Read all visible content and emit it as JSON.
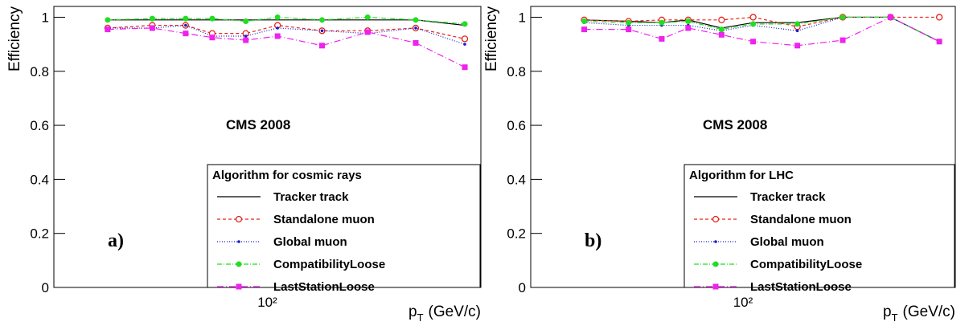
{
  "chart_data": [
    {
      "type": "line",
      "panel_label": "a)",
      "annotation": "CMS 2008",
      "legend_title": "Algorithm for cosmic rays",
      "ylabel": "Efficiency",
      "xlabel": {
        "symbol": "p",
        "subscript": "T",
        "unit": "(GeV/c)"
      },
      "x": [
        30,
        42,
        54,
        66,
        85,
        108,
        151,
        213,
        306,
        443
      ],
      "xlim": [
        20,
        500
      ],
      "xscale": "log",
      "xticks": [
        {
          "value": 100,
          "label": "10²"
        }
      ],
      "ylim": [
        0,
        1.04
      ],
      "yticks": [
        0,
        0.2,
        0.4,
        0.6,
        0.8,
        1
      ],
      "series": [
        {
          "name": "Tracker track",
          "color": "#000000",
          "dash": "none",
          "marker": "none",
          "values": [
            0.99,
            0.99,
            0.99,
            0.99,
            0.99,
            0.99,
            0.99,
            0.99,
            0.99,
            0.97
          ]
        },
        {
          "name": "Standalone muon",
          "color": "#e8231c",
          "dash": "4,3",
          "marker": "open-circle",
          "values": [
            0.96,
            0.97,
            0.97,
            0.94,
            0.94,
            0.97,
            0.95,
            0.95,
            0.96,
            0.92
          ]
        },
        {
          "name": "Global muon",
          "color": "#1a1acc",
          "dash": "1,2",
          "marker": "dot",
          "values": [
            0.96,
            0.96,
            0.97,
            0.93,
            0.93,
            0.96,
            0.95,
            0.94,
            0.96,
            0.9
          ]
        },
        {
          "name": "CompatibilityLoose",
          "color": "#22dd22",
          "dash": "6,2,1,2",
          "marker": "circle",
          "values": [
            0.99,
            0.995,
            0.995,
            0.995,
            0.985,
            1.0,
            0.99,
            1.0,
            0.99,
            0.975
          ]
        },
        {
          "name": "LastStationLoose",
          "color": "#ee22ee",
          "dash": "8,3,1,3",
          "marker": "square",
          "values": [
            0.955,
            0.96,
            0.94,
            0.925,
            0.915,
            0.93,
            0.895,
            0.945,
            0.905,
            0.815
          ]
        }
      ]
    },
    {
      "type": "line",
      "panel_label": "b)",
      "annotation": "CMS 2008",
      "legend_title": "Algorithm for LHC",
      "ylabel": "Efficiency",
      "xlabel": {
        "symbol": "p",
        "subscript": "T",
        "unit": "(GeV/c)"
      },
      "x": [
        30,
        42,
        54,
        66,
        85,
        108,
        151,
        213,
        306,
        443
      ],
      "xlim": [
        20,
        500
      ],
      "xscale": "log",
      "xticks": [
        {
          "value": 100,
          "label": "10²"
        }
      ],
      "ylim": [
        0,
        1.04
      ],
      "yticks": [
        0,
        0.2,
        0.4,
        0.6,
        0.8,
        1
      ],
      "series": [
        {
          "name": "Tracker track",
          "color": "#000000",
          "dash": "none",
          "marker": "none",
          "values": [
            0.99,
            0.985,
            0.98,
            0.99,
            0.96,
            0.98,
            0.98,
            1.0,
            1.0,
            0.91
          ]
        },
        {
          "name": "Standalone muon",
          "color": "#e8231c",
          "dash": "4,3",
          "marker": "open-circle",
          "values": [
            0.99,
            0.985,
            0.99,
            0.99,
            0.99,
            1.0,
            0.965,
            1.0,
            1.0,
            1.0
          ]
        },
        {
          "name": "Global muon",
          "color": "#1a1acc",
          "dash": "1,2",
          "marker": "dot",
          "values": [
            0.98,
            0.97,
            0.97,
            0.97,
            0.95,
            0.97,
            0.95,
            1.0,
            1.0,
            0.91
          ]
        },
        {
          "name": "CompatibilityLoose",
          "color": "#22dd22",
          "dash": "6,2,1,2",
          "marker": "circle",
          "values": [
            0.985,
            0.98,
            0.98,
            0.985,
            0.955,
            0.975,
            0.975,
            1.0,
            1.0,
            0.91
          ]
        },
        {
          "name": "LastStationLoose",
          "color": "#ee22ee",
          "dash": "8,3,1,3",
          "marker": "square",
          "values": [
            0.955,
            0.955,
            0.92,
            0.96,
            0.935,
            0.91,
            0.895,
            0.915,
            1.0,
            0.91
          ]
        }
      ]
    }
  ]
}
